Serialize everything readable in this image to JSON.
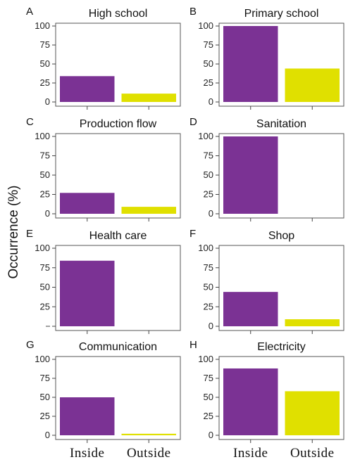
{
  "figure": {
    "ylabel": "Occurrence (%)"
  },
  "colors": {
    "Inside": "#7b3294",
    "Outside": "#e0e000"
  },
  "chart_data": [
    {
      "panel": "A",
      "type": "bar",
      "title": "High school",
      "categories": [
        "Inside",
        "Outside"
      ],
      "values": [
        34,
        11
      ],
      "ylim": [
        0,
        100
      ],
      "yticks": [
        0,
        25,
        50,
        75,
        100
      ],
      "ytick_labels": [
        "0",
        "25",
        "50",
        "75",
        "100"
      ]
    },
    {
      "panel": "B",
      "type": "bar",
      "title": "Primary school",
      "categories": [
        "Inside",
        "Outside"
      ],
      "values": [
        100,
        44
      ],
      "ylim": [
        0,
        100
      ],
      "yticks": [
        0,
        25,
        50,
        75,
        100
      ],
      "ytick_labels": [
        "0",
        "25",
        "50",
        "75",
        "100"
      ]
    },
    {
      "panel": "C",
      "type": "bar",
      "title": "Production flow",
      "categories": [
        "Inside",
        "Outside"
      ],
      "values": [
        27,
        9
      ],
      "ylim": [
        0,
        100
      ],
      "yticks": [
        0,
        25,
        50,
        75,
        100
      ],
      "ytick_labels": [
        "0",
        "25",
        "50",
        "75",
        "100"
      ]
    },
    {
      "panel": "D",
      "type": "bar",
      "title": "Sanitation",
      "categories": [
        "Inside",
        "Outside"
      ],
      "values": [
        100,
        0
      ],
      "ylim": [
        0,
        100
      ],
      "yticks": [
        0,
        25,
        50,
        75,
        100
      ],
      "ytick_labels": [
        "0",
        "25",
        "50",
        "75",
        "100"
      ]
    },
    {
      "panel": "E",
      "type": "bar",
      "title": "Health care",
      "categories": [
        "Inside",
        "Outside"
      ],
      "values": [
        84,
        0
      ],
      "ylim": [
        0,
        100
      ],
      "yticks": [
        0,
        25,
        50,
        75,
        100
      ],
      "ytick_labels": [
        "",
        "25",
        "50",
        "75",
        "100"
      ]
    },
    {
      "panel": "F",
      "type": "bar",
      "title": "Shop",
      "categories": [
        "Inside",
        "Outside"
      ],
      "values": [
        44,
        9
      ],
      "ylim": [
        0,
        100
      ],
      "yticks": [
        0,
        25,
        50,
        75,
        100
      ],
      "ytick_labels": [
        "0",
        "25",
        "50",
        "75",
        "100"
      ]
    },
    {
      "panel": "G",
      "type": "bar",
      "title": "Communication",
      "categories": [
        "Inside",
        "Outside"
      ],
      "values": [
        50,
        2
      ],
      "ylim": [
        0,
        100
      ],
      "yticks": [
        0,
        25,
        50,
        75,
        100
      ],
      "ytick_labels": [
        "0",
        "25",
        "50",
        "75",
        "100"
      ]
    },
    {
      "panel": "H",
      "type": "bar",
      "title": "Electricity",
      "categories": [
        "Inside",
        "Outside"
      ],
      "values": [
        88,
        58
      ],
      "ylim": [
        0,
        100
      ],
      "yticks": [
        0,
        25,
        50,
        75,
        100
      ],
      "ytick_labels": [
        "0",
        "25",
        "50",
        "75",
        "100"
      ]
    }
  ],
  "xaxis_labels": [
    "Inside",
    "Outside",
    "Inside",
    "Outside"
  ]
}
